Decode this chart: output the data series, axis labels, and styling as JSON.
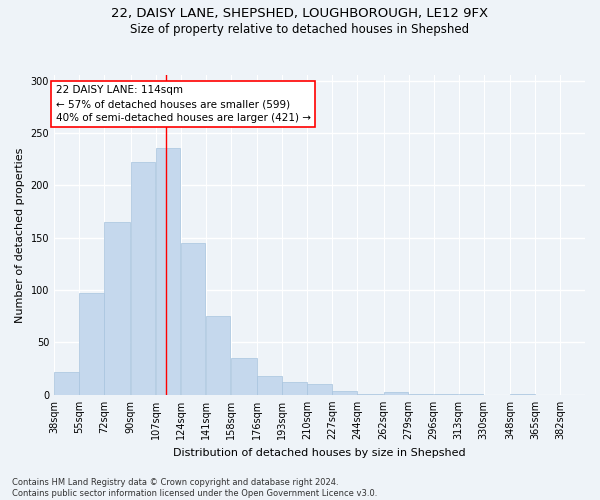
{
  "title1": "22, DAISY LANE, SHEPSHED, LOUGHBOROUGH, LE12 9FX",
  "title2": "Size of property relative to detached houses in Shepshed",
  "xlabel": "Distribution of detached houses by size in Shepshed",
  "ylabel": "Number of detached properties",
  "bar_color": "#c5d8ed",
  "bar_edge_color": "#a8c4de",
  "annotation_line_color": "red",
  "property_size": 114,
  "annotation_text": "22 DAISY LANE: 114sqm\n← 57% of detached houses are smaller (599)\n40% of semi-detached houses are larger (421) →",
  "footnote": "Contains HM Land Registry data © Crown copyright and database right 2024.\nContains public sector information licensed under the Open Government Licence v3.0.",
  "bin_labels": [
    "38sqm",
    "55sqm",
    "72sqm",
    "90sqm",
    "107sqm",
    "124sqm",
    "141sqm",
    "158sqm",
    "176sqm",
    "193sqm",
    "210sqm",
    "227sqm",
    "244sqm",
    "262sqm",
    "279sqm",
    "296sqm",
    "313sqm",
    "330sqm",
    "348sqm",
    "365sqm",
    "382sqm"
  ],
  "bin_edges": [
    38,
    55,
    72,
    90,
    107,
    124,
    141,
    158,
    176,
    193,
    210,
    227,
    244,
    262,
    279,
    296,
    313,
    330,
    348,
    365,
    382,
    399
  ],
  "bar_values": [
    22,
    97,
    165,
    222,
    236,
    145,
    75,
    35,
    18,
    12,
    10,
    4,
    1,
    3,
    1,
    1,
    1,
    0,
    1,
    0,
    0
  ],
  "ylim": [
    0,
    305
  ],
  "yticks": [
    0,
    50,
    100,
    150,
    200,
    250,
    300
  ],
  "bg_color": "#eef3f8",
  "plot_bg_color": "#eef3f8",
  "grid_color": "white",
  "title_fontsize": 9.5,
  "subtitle_fontsize": 8.5,
  "axis_label_fontsize": 8,
  "tick_fontsize": 7,
  "annotation_fontsize": 7.5,
  "footnote_fontsize": 6
}
